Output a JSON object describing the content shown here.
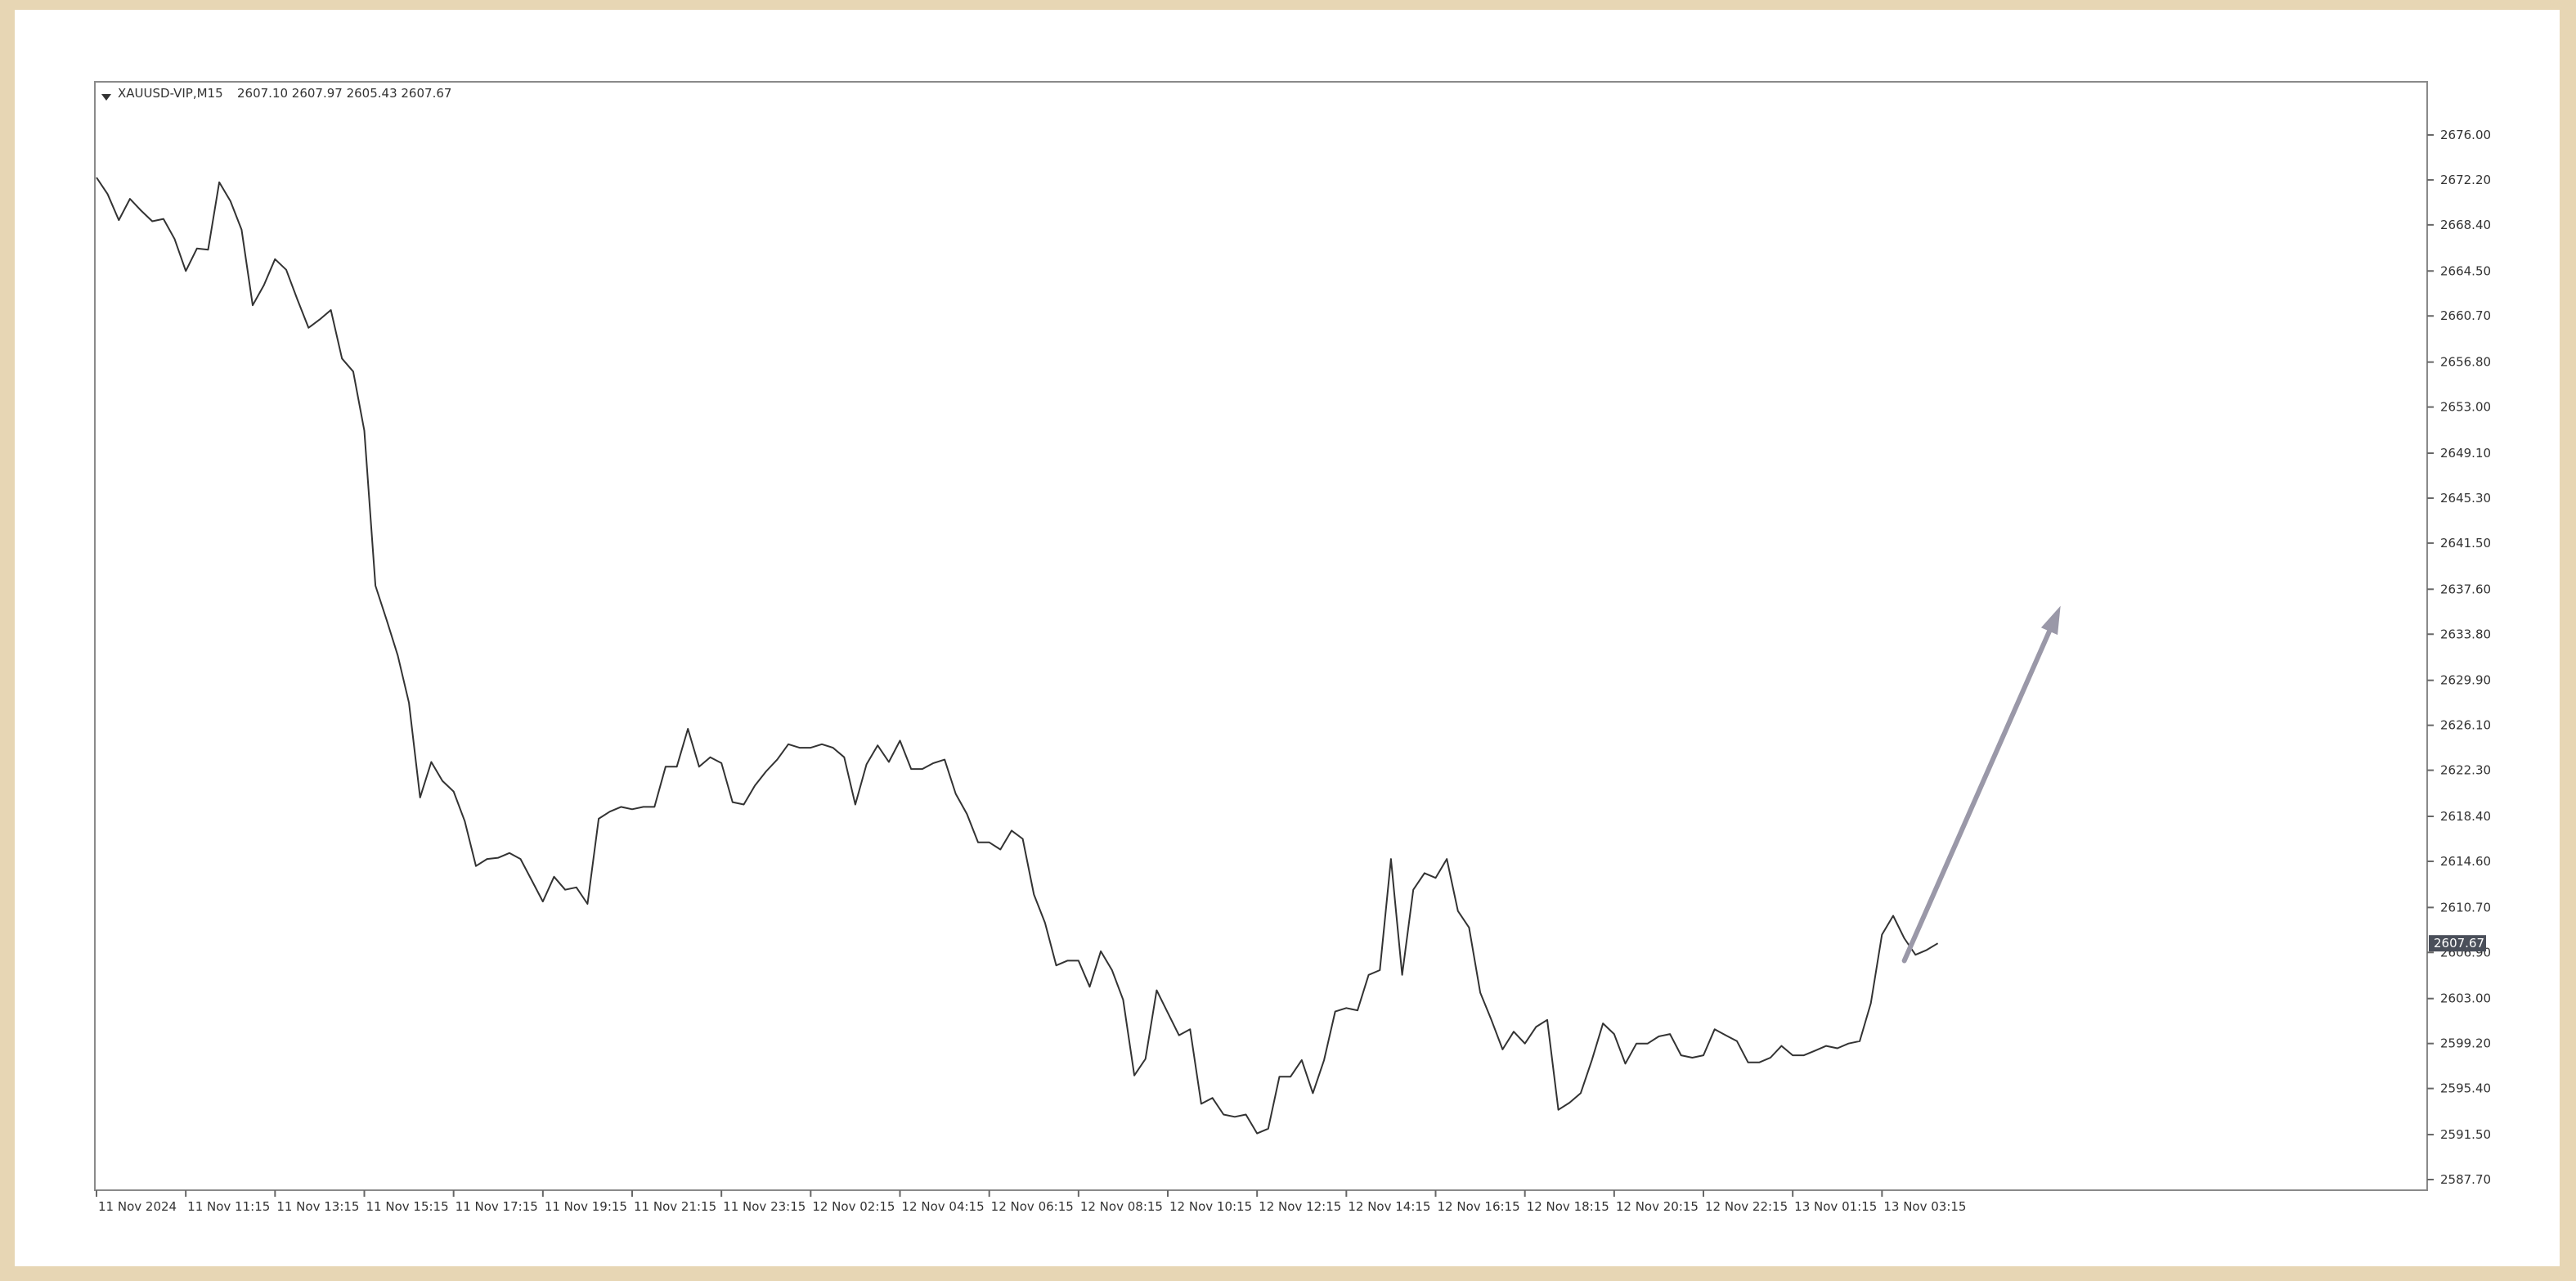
{
  "header": {
    "symbol": "XAUUSD-VIP,M15",
    "ohlc": "2607.10 2607.97 2605.43 2607.67"
  },
  "colors": {
    "page_bg": "#e7d6b4",
    "chart_bg": "#ffffff",
    "line": "#333333",
    "arrow": "#9a98a8",
    "price_tag_bg": "#4a4f5a"
  },
  "chart_data": {
    "type": "line",
    "ylim": [
      2587.7,
      2679.8
    ],
    "grid": false,
    "legend": "none",
    "y_ticks": [
      "2676.00",
      "2672.20",
      "2668.40",
      "2664.50",
      "2660.70",
      "2656.80",
      "2653.00",
      "2649.10",
      "2645.30",
      "2641.50",
      "2637.60",
      "2633.80",
      "2629.90",
      "2626.10",
      "2622.30",
      "2618.40",
      "2614.60",
      "2610.70",
      "2606.90",
      "2603.00",
      "2599.20",
      "2595.40",
      "2591.50",
      "2587.70"
    ],
    "x_ticks": [
      {
        "i": 0,
        "label": "11 Nov 2024"
      },
      {
        "i": 8,
        "label": "11 Nov 11:15"
      },
      {
        "i": 16,
        "label": "11 Nov 13:15"
      },
      {
        "i": 24,
        "label": "11 Nov 15:15"
      },
      {
        "i": 32,
        "label": "11 Nov 17:15"
      },
      {
        "i": 40,
        "label": "11 Nov 19:15"
      },
      {
        "i": 48,
        "label": "11 Nov 21:15"
      },
      {
        "i": 56,
        "label": "11 Nov 23:15"
      },
      {
        "i": 64,
        "label": "12 Nov 02:15"
      },
      {
        "i": 72,
        "label": "12 Nov 04:15"
      },
      {
        "i": 80,
        "label": "12 Nov 06:15"
      },
      {
        "i": 88,
        "label": "12 Nov 08:15"
      },
      {
        "i": 96,
        "label": "12 Nov 10:15"
      },
      {
        "i": 104,
        "label": "12 Nov 12:15"
      },
      {
        "i": 112,
        "label": "12 Nov 14:15"
      },
      {
        "i": 120,
        "label": "12 Nov 16:15"
      },
      {
        "i": 128,
        "label": "12 Nov 18:15"
      },
      {
        "i": 136,
        "label": "12 Nov 20:15"
      },
      {
        "i": 144,
        "label": "12 Nov 22:15"
      },
      {
        "i": 152,
        "label": "13 Nov 01:15"
      },
      {
        "i": 160,
        "label": "13 Nov 03:15"
      }
    ],
    "bar_spacing_slots": 209,
    "series": [
      {
        "values": [
          2672.4,
          2671.0,
          2668.8,
          2670.6,
          2669.6,
          2668.7,
          2668.9,
          2667.2,
          2664.5,
          2666.4,
          2666.3,
          2672.0,
          2670.4,
          2668.0,
          2661.6,
          2663.3,
          2665.5,
          2664.6,
          2662.1,
          2659.7,
          2660.4,
          2661.2,
          2657.1,
          2656.0,
          2651.0,
          2637.9,
          2635.0,
          2632.0,
          2628.0,
          2620.0,
          2623.0,
          2621.4,
          2620.5,
          2618.0,
          2614.2,
          2614.8,
          2614.9,
          2615.3,
          2614.8,
          2613.0,
          2611.2,
          2613.3,
          2612.2,
          2612.4,
          2611.0,
          2618.2,
          2618.8,
          2619.2,
          2619.0,
          2619.2,
          2619.2,
          2622.6,
          2622.6,
          2625.8,
          2622.6,
          2623.4,
          2622.9,
          2619.6,
          2619.4,
          2621.0,
          2622.2,
          2623.2,
          2624.5,
          2624.2,
          2624.2,
          2624.5,
          2624.2,
          2623.4,
          2619.4,
          2622.8,
          2624.4,
          2623.0,
          2624.8,
          2622.4,
          2622.4,
          2622.9,
          2623.2,
          2620.3,
          2618.6,
          2616.2,
          2616.2,
          2615.6,
          2617.2,
          2616.5,
          2611.8,
          2609.4,
          2605.8,
          2606.2,
          2606.2,
          2604.0,
          2607.0,
          2605.4,
          2602.9,
          2596.5,
          2597.9,
          2603.7,
          2601.8,
          2599.9,
          2600.4,
          2594.1,
          2594.6,
          2593.2,
          2593.0,
          2593.2,
          2591.6,
          2592.0,
          2596.4,
          2596.4,
          2597.8,
          2595.0,
          2597.8,
          2601.9,
          2602.2,
          2602.0,
          2605.0,
          2605.4,
          2614.8,
          2605.0,
          2612.2,
          2613.6,
          2613.2,
          2614.8,
          2610.4,
          2609.0,
          2603.5,
          2601.2,
          2598.7,
          2600.2,
          2599.2,
          2600.6,
          2601.2,
          2593.6,
          2594.2,
          2595.0,
          2597.8,
          2600.9,
          2600.0,
          2597.5,
          2599.2,
          2599.2,
          2599.8,
          2600.0,
          2598.2,
          2598.0,
          2598.2,
          2600.4,
          2599.9,
          2599.4,
          2597.6,
          2597.6,
          2598.0,
          2599.0,
          2598.2,
          2598.2,
          2598.6,
          2599.0,
          2598.8,
          2599.2,
          2599.4,
          2602.6,
          2608.4,
          2610.0,
          2608.1,
          2606.7,
          2607.1,
          2607.67
        ]
      }
    ],
    "last_price": "2607.67",
    "annotation": {
      "type": "arrow",
      "from_i": 162,
      "from_y": 2606.2,
      "to_i": 176,
      "to_y": 2636.2
    }
  }
}
